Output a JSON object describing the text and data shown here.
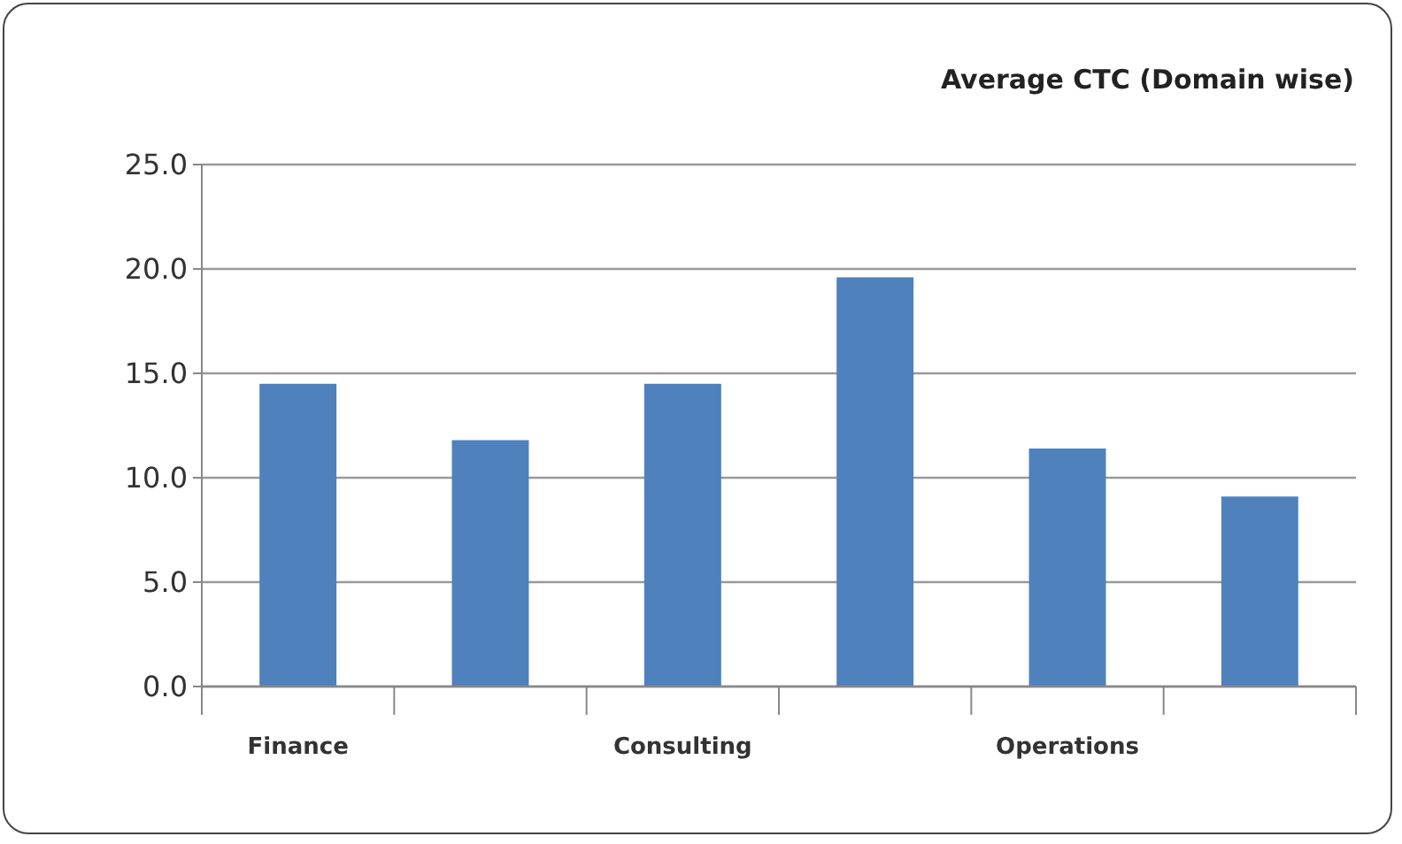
{
  "chart_data": {
    "type": "bar",
    "title": "Average CTC (Domain wise)",
    "categories": [
      "Finance",
      null,
      "Consulting",
      null,
      "Operations",
      null
    ],
    "values": [
      14.5,
      11.8,
      14.5,
      19.6,
      11.4,
      9.1
    ],
    "color": "#4f81bd",
    "ylim": [
      0,
      25
    ],
    "yticks": [
      {
        "value": 0,
        "label": "0.0"
      },
      {
        "value": 5,
        "label": "5.0"
      },
      {
        "value": 10,
        "label": "10.0"
      },
      {
        "value": 15,
        "label": "15.0"
      },
      {
        "value": 20,
        "label": "20.0"
      },
      {
        "value": 25,
        "label": "25.0"
      }
    ],
    "grid": "y"
  }
}
